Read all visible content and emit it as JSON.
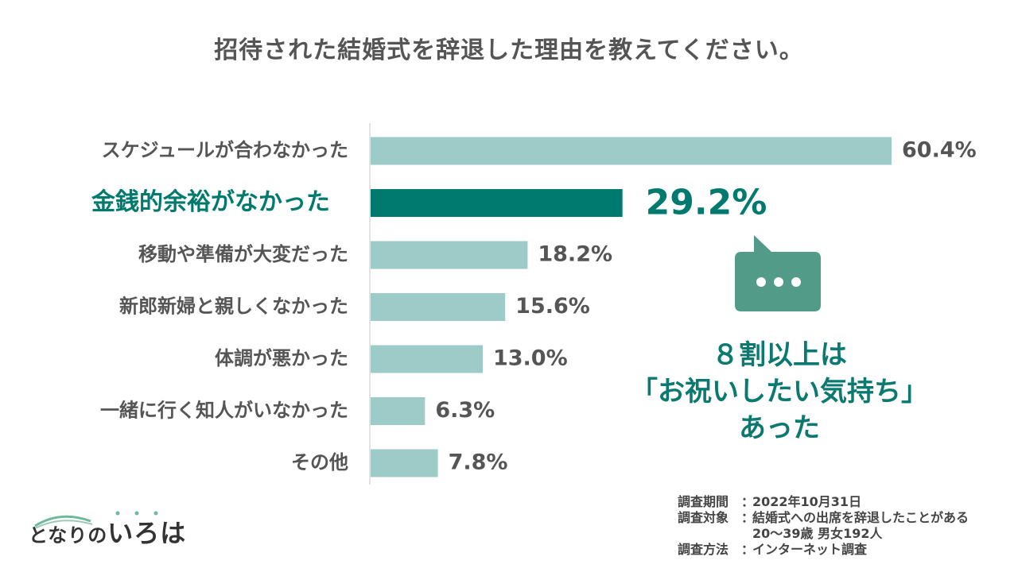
{
  "chart_data": {
    "type": "bar",
    "orientation": "horizontal",
    "title": "招待された結婚式を辞退した理由を教えてください。",
    "categories": [
      "スケジュールが合わなかった",
      "金銭的余裕がなかった",
      "移動や準備が大変だった",
      "新郎新婦と親しくなかった",
      "体調が悪かった",
      "一緒に行く知人がいなかった",
      "その他"
    ],
    "values": [
      60.4,
      29.2,
      18.2,
      15.6,
      13.0,
      6.3,
      7.8
    ],
    "value_labels": [
      "60.4%",
      "29.2%",
      "18.2%",
      "15.6%",
      "13.0%",
      "6.3%",
      "7.8%"
    ],
    "highlight_index": 1,
    "xlim": [
      0,
      60.4
    ],
    "colors": {
      "bar": "#9ccbc8",
      "highlight_bar": "#007a6e",
      "text": "#555555",
      "highlight_text": "#007a6e",
      "axis": "#d8d8d8"
    }
  },
  "callout": {
    "icon": "speech-bubble-icon",
    "icon_color": "#529b88",
    "line1": "８割以上は",
    "line2": "「お祝いしたい気持ち」",
    "line3": "あった"
  },
  "logo": {
    "part1": "となりの",
    "part2": "いろは"
  },
  "survey": {
    "period_label": "調査期間",
    "period_value": "2022年10月31日",
    "target_label": "調査対象",
    "target_value": "結婚式への出席を辞退したことがある",
    "target_value2": "20〜39歳 男女192人",
    "method_label": "調査方法",
    "method_value": "インターネット調査",
    "colon": "："
  }
}
